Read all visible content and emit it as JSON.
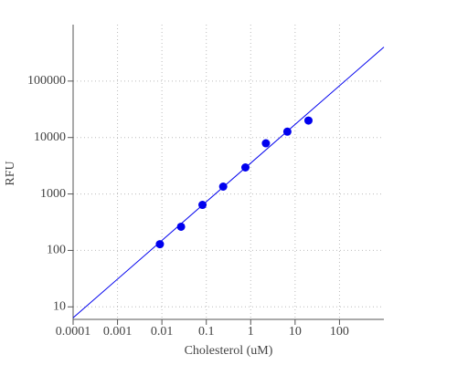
{
  "chart_data": {
    "type": "scatter",
    "x_label": "Cholesterol (uM)",
    "y_label": "RFU",
    "x_scale": "log",
    "y_scale": "log",
    "grid": true,
    "xlim": [
      0.0001,
      1000
    ],
    "ylim": [
      6,
      1000000
    ],
    "xticks": [
      0.0001,
      0.001,
      0.01,
      0.1,
      1,
      10,
      100
    ],
    "yticks": [
      10,
      100,
      1000,
      10000,
      100000
    ],
    "points": {
      "color": "#0000ee",
      "x": [
        0.009,
        0.027,
        0.082,
        0.24,
        0.76,
        2.2,
        6.7,
        20
      ],
      "y": [
        129,
        263,
        640,
        1350,
        2950,
        7900,
        12700,
        20000
      ]
    },
    "fit_line": {
      "color": "#0000ee",
      "x": [
        0.0001,
        1000
      ],
      "y": [
        6.4,
        400000
      ]
    }
  }
}
